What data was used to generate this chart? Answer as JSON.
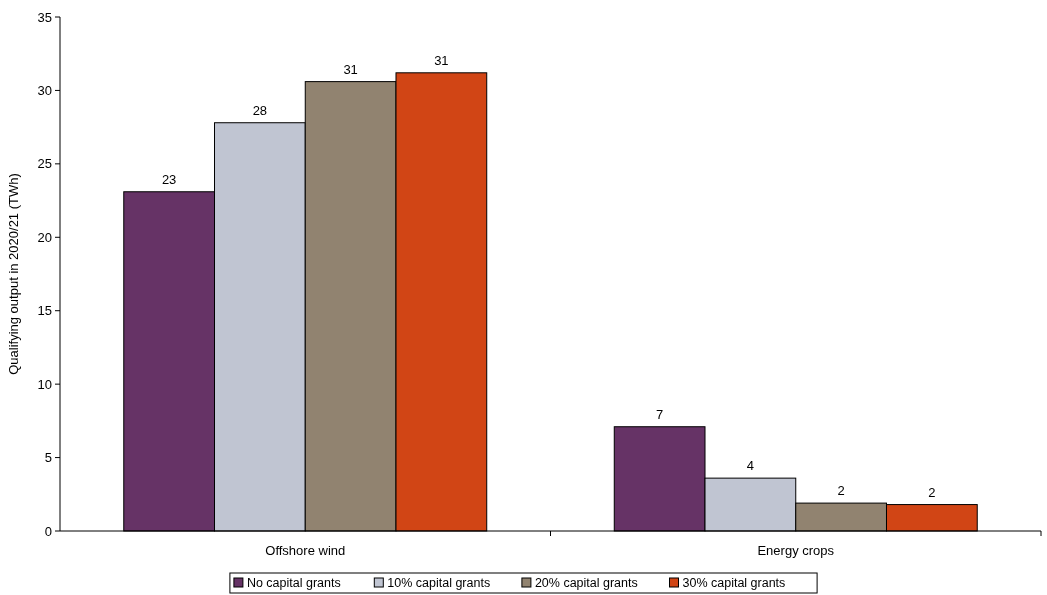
{
  "chart_data": {
    "type": "bar",
    "ylabel": "Qualifying output in 2020/21 (TWh)",
    "categories": [
      "Offshore wind",
      "Energy crops"
    ],
    "series": [
      {
        "name": "No capital grants",
        "color": "#663366",
        "values": [
          23.1,
          7.1
        ],
        "value_labels": [
          "23",
          "7"
        ]
      },
      {
        "name": "10% capital grants",
        "color": "#c0c5d2",
        "values": [
          27.8,
          3.6
        ],
        "value_labels": [
          "28",
          "4"
        ]
      },
      {
        "name": "20% capital grants",
        "color": "#918370",
        "values": [
          30.6,
          1.9
        ],
        "value_labels": [
          "31",
          "2"
        ]
      },
      {
        "name": "30% capital grants",
        "color": "#d14515",
        "values": [
          31.2,
          1.8
        ],
        "value_labels": [
          "31",
          "2"
        ]
      }
    ],
    "ylim": [
      0,
      35
    ],
    "yticks": [
      0,
      5,
      10,
      15,
      20,
      25,
      30,
      35
    ],
    "grid": false,
    "legend": "bottom"
  }
}
